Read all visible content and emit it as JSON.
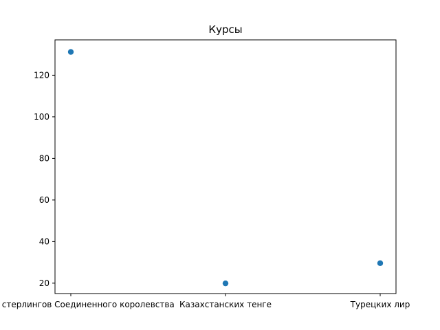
{
  "chart_data": {
    "type": "scatter",
    "title": "Курсы",
    "xlabel": "",
    "ylabel": "",
    "categories": [
      "Фунтов стерлингов Соединенного королевства",
      "Казахстанских тенге",
      "Турецких лир"
    ],
    "values": [
      131.2,
      19.9,
      29.6
    ],
    "ylim": [
      15,
      137
    ],
    "yticks": [
      20,
      40,
      60,
      80,
      100,
      120
    ],
    "grid": false,
    "legend": "none",
    "marker_color": "#1f77b4"
  }
}
